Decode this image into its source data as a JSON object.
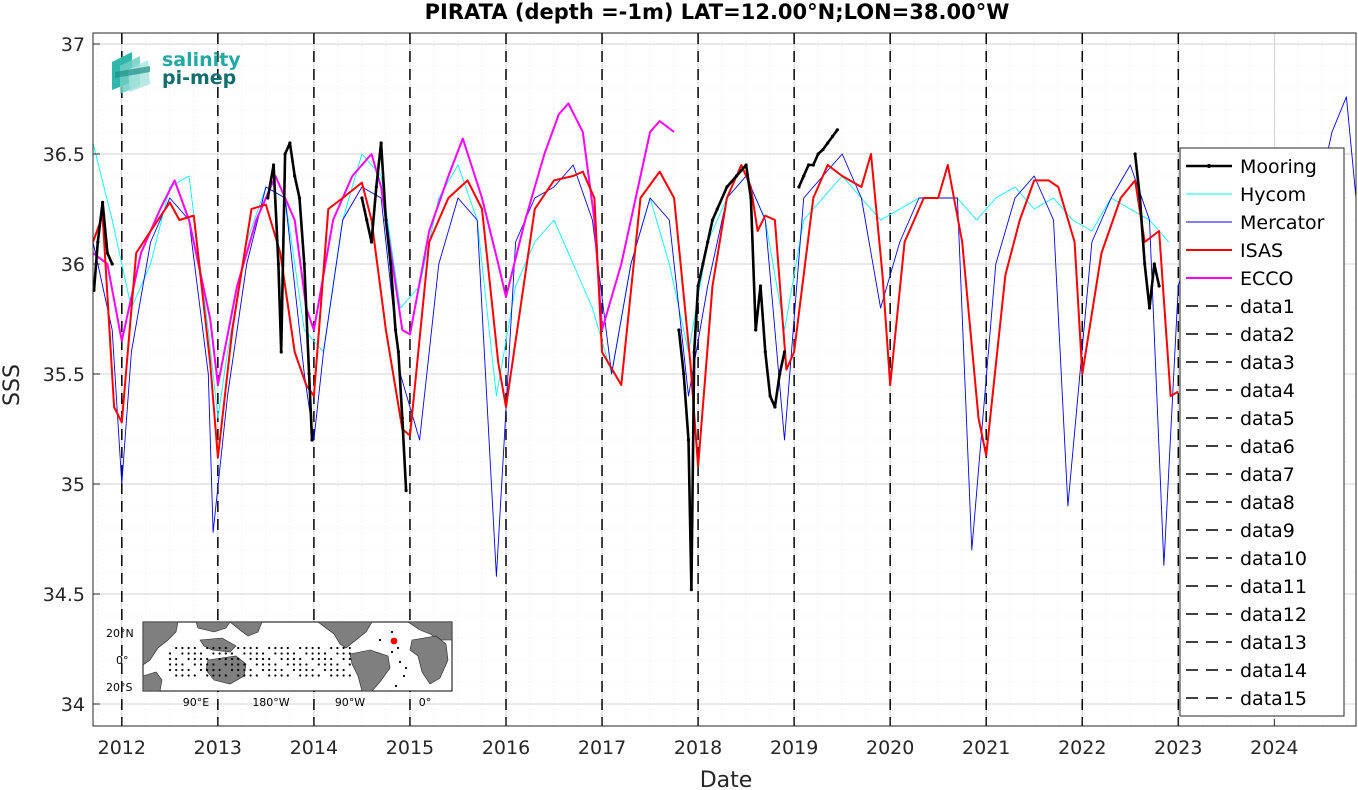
{
  "chart_data": {
    "type": "line",
    "title": "PIRATA (depth =-1m) LAT=12.00°N;LON=38.00°W",
    "xlabel": "Date",
    "ylabel": "SSS",
    "xlim": [
      2011.7,
      2024.85
    ],
    "ylim": [
      33.9,
      37.05
    ],
    "x_ticks": [
      2012,
      2013,
      2014,
      2015,
      2016,
      2017,
      2018,
      2019,
      2020,
      2021,
      2022,
      2023,
      2024
    ],
    "y_ticks": [
      34,
      34.5,
      35,
      35.5,
      36,
      36.5,
      37
    ],
    "y_tick_labels": [
      "34",
      "34.5",
      "35",
      "35.5",
      "36",
      "36.5",
      "37"
    ],
    "grid": true,
    "minor_grid": true,
    "legend_position": "right",
    "vertical_lines_at": [
      2012,
      2013,
      2014,
      2015,
      2016,
      2017,
      2018,
      2019,
      2020,
      2021,
      2022,
      2023
    ],
    "series": [
      {
        "name": "Mooring",
        "color": "#000000",
        "style": "solid-thick-dots",
        "segments": [
          {
            "x": [
              2011.71,
              2011.75,
              2011.8,
              2011.85,
              2011.9
            ],
            "y": [
              35.88,
              36.1,
              36.28,
              36.05,
              36.0
            ]
          },
          {
            "x": [
              2013.52,
              2013.58,
              2013.63,
              2013.66,
              2013.7,
              2013.75,
              2013.8,
              2013.85,
              2013.9,
              2013.95,
              2013.98
            ],
            "y": [
              36.3,
              36.45,
              36.0,
              35.6,
              36.5,
              36.55,
              36.4,
              36.3,
              36.0,
              35.5,
              35.2
            ]
          },
          {
            "x": [
              2014.5,
              2014.55,
              2014.6,
              2014.65,
              2014.7,
              2014.75,
              2014.8,
              2014.85,
              2014.88,
              2014.92,
              2014.96
            ],
            "y": [
              36.3,
              36.2,
              36.1,
              36.35,
              36.55,
              36.2,
              36.0,
              35.7,
              35.6,
              35.3,
              34.97
            ]
          },
          {
            "x": [
              2017.8,
              2017.85,
              2017.9,
              2017.93,
              2017.96,
              2018.0,
              2018.05,
              2018.1,
              2018.15,
              2018.2,
              2018.3,
              2018.4,
              2018.5,
              2018.55,
              2018.6,
              2018.65,
              2018.7,
              2018.75,
              2018.8,
              2018.85,
              2018.9
            ],
            "y": [
              35.7,
              35.5,
              35.2,
              34.52,
              35.6,
              35.9,
              36.0,
              36.1,
              36.2,
              36.25,
              36.35,
              36.4,
              36.45,
              36.3,
              35.7,
              35.9,
              35.6,
              35.4,
              35.35,
              35.5,
              35.6
            ]
          },
          {
            "x": [
              2019.05,
              2019.1,
              2019.15,
              2019.2,
              2019.25,
              2019.3,
              2019.35,
              2019.4,
              2019.45
            ],
            "y": [
              36.35,
              36.4,
              36.45,
              36.45,
              36.5,
              36.52,
              36.55,
              36.58,
              36.61
            ]
          },
          {
            "x": [
              2022.55,
              2022.6,
              2022.65,
              2022.7,
              2022.75,
              2022.8
            ],
            "y": [
              36.5,
              36.3,
              36.0,
              35.8,
              36.0,
              35.9
            ]
          }
        ]
      },
      {
        "name": "Hycom",
        "color": "#00ffff",
        "style": "solid-thin",
        "x": [
          2011.7,
          2011.9,
          2012.1,
          2012.3,
          2012.5,
          2012.7,
          2012.9,
          2013.0,
          2013.1,
          2013.3,
          2013.5,
          2013.7,
          2013.9,
          2014.1,
          2014.3,
          2014.5,
          2014.7,
          2014.9,
          2015.1,
          2015.3,
          2015.5,
          2015.7,
          2015.9,
          2016.1,
          2016.3,
          2016.5,
          2016.7,
          2016.9,
          2017.1,
          2017.3,
          2017.5,
          2017.7,
          2017.9,
          2018.1,
          2018.3,
          2018.5,
          2018.7,
          2018.9,
          2019.1,
          2019.3,
          2019.5,
          2019.7,
          2019.9,
          2020.1,
          2020.3,
          2020.5,
          2020.7,
          2020.9,
          2021.1,
          2021.3,
          2021.5,
          2021.7,
          2021.9,
          2022.1,
          2022.3,
          2022.5,
          2022.7,
          2022.9
        ],
        "y": [
          36.55,
          36.2,
          35.8,
          36.0,
          36.35,
          36.4,
          35.7,
          35.3,
          35.6,
          36.1,
          36.35,
          36.3,
          35.7,
          35.6,
          36.2,
          36.5,
          36.4,
          35.8,
          35.9,
          36.3,
          36.45,
          36.2,
          35.4,
          35.9,
          36.1,
          36.2,
          36.0,
          35.8,
          35.5,
          36.0,
          36.3,
          36.0,
          35.6,
          36.1,
          36.3,
          36.4,
          36.2,
          35.7,
          36.2,
          36.3,
          36.4,
          36.3,
          36.2,
          36.25,
          36.3,
          36.3,
          36.3,
          36.2,
          36.3,
          36.35,
          36.25,
          36.3,
          36.2,
          36.15,
          36.3,
          36.25,
          36.2,
          36.1
        ]
      },
      {
        "name": "Mercator",
        "color": "#0000ff",
        "style": "solid-thin",
        "x": [
          2011.7,
          2011.9,
          2012.0,
          2012.1,
          2012.3,
          2012.5,
          2012.7,
          2012.9,
          2012.95,
          2013.1,
          2013.3,
          2013.5,
          2013.7,
          2013.9,
          2014.0,
          2014.1,
          2014.3,
          2014.5,
          2014.7,
          2014.9,
          2015.1,
          2015.3,
          2015.5,
          2015.7,
          2015.9,
          2016.1,
          2016.3,
          2016.5,
          2016.7,
          2016.9,
          2017.1,
          2017.3,
          2017.5,
          2017.7,
          2017.9,
          2018.1,
          2018.3,
          2018.5,
          2018.7,
          2018.9,
          2019.1,
          2019.3,
          2019.5,
          2019.7,
          2019.9,
          2020.1,
          2020.3,
          2020.5,
          2020.7,
          2020.85,
          2021.1,
          2021.3,
          2021.5,
          2021.7,
          2021.85,
          2022.1,
          2022.3,
          2022.5,
          2022.7,
          2022.85,
          2023.0,
          2023.2,
          2023.4,
          2023.6,
          2023.8,
          2024.0,
          2024.2,
          2024.4,
          2024.6,
          2024.75,
          2024.85
        ],
        "y": [
          36.1,
          35.7,
          35.0,
          35.6,
          36.1,
          36.3,
          36.2,
          35.5,
          34.78,
          35.4,
          36.0,
          36.35,
          36.3,
          35.5,
          35.2,
          35.6,
          36.2,
          36.35,
          36.3,
          35.5,
          35.2,
          36.0,
          36.3,
          36.2,
          34.58,
          36.1,
          36.3,
          36.35,
          36.45,
          36.2,
          35.5,
          36.0,
          36.3,
          36.2,
          35.4,
          35.9,
          36.3,
          36.4,
          36.2,
          35.2,
          36.3,
          36.4,
          36.5,
          36.3,
          35.8,
          36.1,
          36.3,
          36.3,
          36.3,
          34.7,
          36.0,
          36.3,
          36.4,
          36.2,
          34.9,
          36.1,
          36.3,
          36.45,
          36.2,
          34.63,
          35.9,
          36.2,
          36.3,
          36.4,
          36.3,
          36.3,
          36.4,
          36.2,
          36.6,
          36.76,
          36.3
        ]
      },
      {
        "name": "ISAS",
        "color": "#ff0000",
        "style": "solid",
        "x": [
          2011.7,
          2011.8,
          2011.92,
          2012.0,
          2012.15,
          2012.3,
          2012.5,
          2012.6,
          2012.75,
          2012.92,
          2013.0,
          2013.15,
          2013.35,
          2013.5,
          2013.65,
          2013.8,
          2013.92,
          2014.0,
          2014.15,
          2014.3,
          2014.5,
          2014.6,
          2014.75,
          2014.92,
          2015.0,
          2015.2,
          2015.4,
          2015.6,
          2015.75,
          2015.92,
          2016.0,
          2016.15,
          2016.3,
          2016.5,
          2016.7,
          2016.8,
          2016.92,
          2017.0,
          2017.2,
          2017.4,
          2017.6,
          2017.75,
          2017.92,
          2018.0,
          2018.15,
          2018.3,
          2018.45,
          2018.55,
          2018.62,
          2018.7,
          2018.8,
          2018.92,
          2019.0,
          2019.2,
          2019.35,
          2019.5,
          2019.7,
          2019.8,
          2019.92,
          2020.0,
          2020.15,
          2020.35,
          2020.5,
          2020.6,
          2020.75,
          2020.92,
          2021.0,
          2021.2,
          2021.35,
          2021.5,
          2021.65,
          2021.75,
          2021.92,
          2022.0,
          2022.2,
          2022.4,
          2022.55,
          2022.65,
          2022.8,
          2022.92,
          2023.0
        ],
        "y": [
          36.1,
          36.22,
          35.35,
          35.28,
          36.05,
          36.15,
          36.28,
          36.2,
          36.22,
          35.55,
          35.12,
          35.7,
          36.25,
          36.27,
          36.05,
          35.6,
          35.45,
          35.4,
          36.25,
          36.3,
          36.37,
          36.2,
          35.7,
          35.25,
          35.22,
          36.1,
          36.3,
          36.38,
          36.25,
          35.55,
          35.35,
          35.8,
          36.25,
          36.38,
          36.4,
          36.42,
          36.3,
          35.6,
          35.45,
          36.3,
          36.42,
          36.3,
          35.55,
          35.08,
          35.9,
          36.3,
          36.45,
          36.35,
          36.15,
          36.22,
          36.2,
          35.52,
          35.6,
          36.3,
          36.45,
          36.4,
          36.35,
          36.5,
          35.95,
          35.45,
          36.1,
          36.3,
          36.3,
          36.45,
          36.1,
          35.3,
          35.13,
          35.95,
          36.2,
          36.38,
          36.38,
          36.35,
          36.1,
          35.5,
          36.05,
          36.3,
          36.38,
          36.1,
          36.15,
          35.4,
          35.42
        ]
      },
      {
        "name": "ECCO",
        "color": "#ff00ff",
        "style": "solid",
        "x": [
          2011.7,
          2011.85,
          2012.0,
          2012.2,
          2012.4,
          2012.55,
          2012.7,
          2012.92,
          2013.0,
          2013.2,
          2013.4,
          2013.6,
          2013.8,
          2013.92,
          2014.0,
          2014.2,
          2014.4,
          2014.6,
          2014.7,
          2014.92,
          2015.0,
          2015.2,
          2015.4,
          2015.55,
          2015.75,
          2015.92,
          2016.0,
          2016.2,
          2016.4,
          2016.55,
          2016.65,
          2016.8,
          2016.92,
          2017.0,
          2017.2,
          2017.4,
          2017.5,
          2017.6,
          2017.75
        ],
        "y": [
          36.05,
          36.0,
          35.65,
          36.05,
          36.25,
          36.38,
          36.2,
          35.75,
          35.45,
          35.9,
          36.2,
          36.4,
          36.2,
          35.8,
          35.7,
          36.2,
          36.4,
          36.5,
          36.35,
          35.7,
          35.68,
          36.15,
          36.4,
          36.57,
          36.3,
          36.0,
          35.85,
          36.2,
          36.5,
          36.68,
          36.73,
          36.6,
          36.2,
          35.7,
          36.0,
          36.4,
          36.6,
          36.65,
          36.6
        ]
      },
      {
        "name": "data1",
        "color": "#000000",
        "style": "dashed"
      },
      {
        "name": "data2",
        "color": "#000000",
        "style": "dashed"
      },
      {
        "name": "data3",
        "color": "#000000",
        "style": "dashed"
      },
      {
        "name": "data4",
        "color": "#000000",
        "style": "dashed"
      },
      {
        "name": "data5",
        "color": "#000000",
        "style": "dashed"
      },
      {
        "name": "data6",
        "color": "#000000",
        "style": "dashed"
      },
      {
        "name": "data7",
        "color": "#000000",
        "style": "dashed"
      },
      {
        "name": "data8",
        "color": "#000000",
        "style": "dashed"
      },
      {
        "name": "data9",
        "color": "#000000",
        "style": "dashed"
      },
      {
        "name": "data10",
        "color": "#000000",
        "style": "dashed"
      },
      {
        "name": "data11",
        "color": "#000000",
        "style": "dashed"
      },
      {
        "name": "data12",
        "color": "#000000",
        "style": "dashed"
      },
      {
        "name": "data13",
        "color": "#000000",
        "style": "dashed"
      },
      {
        "name": "data14",
        "color": "#000000",
        "style": "dashed"
      },
      {
        "name": "data15",
        "color": "#000000",
        "style": "dashed"
      }
    ]
  },
  "logo": {
    "line1": "salinity",
    "line2": "pi-mep"
  },
  "inset_map": {
    "lat_labels": [
      "20°N",
      "0°",
      "20°S"
    ],
    "lon_labels": [
      "90°E",
      "180°W",
      "90°W",
      "0°"
    ],
    "marker_color": "#ff0000"
  }
}
